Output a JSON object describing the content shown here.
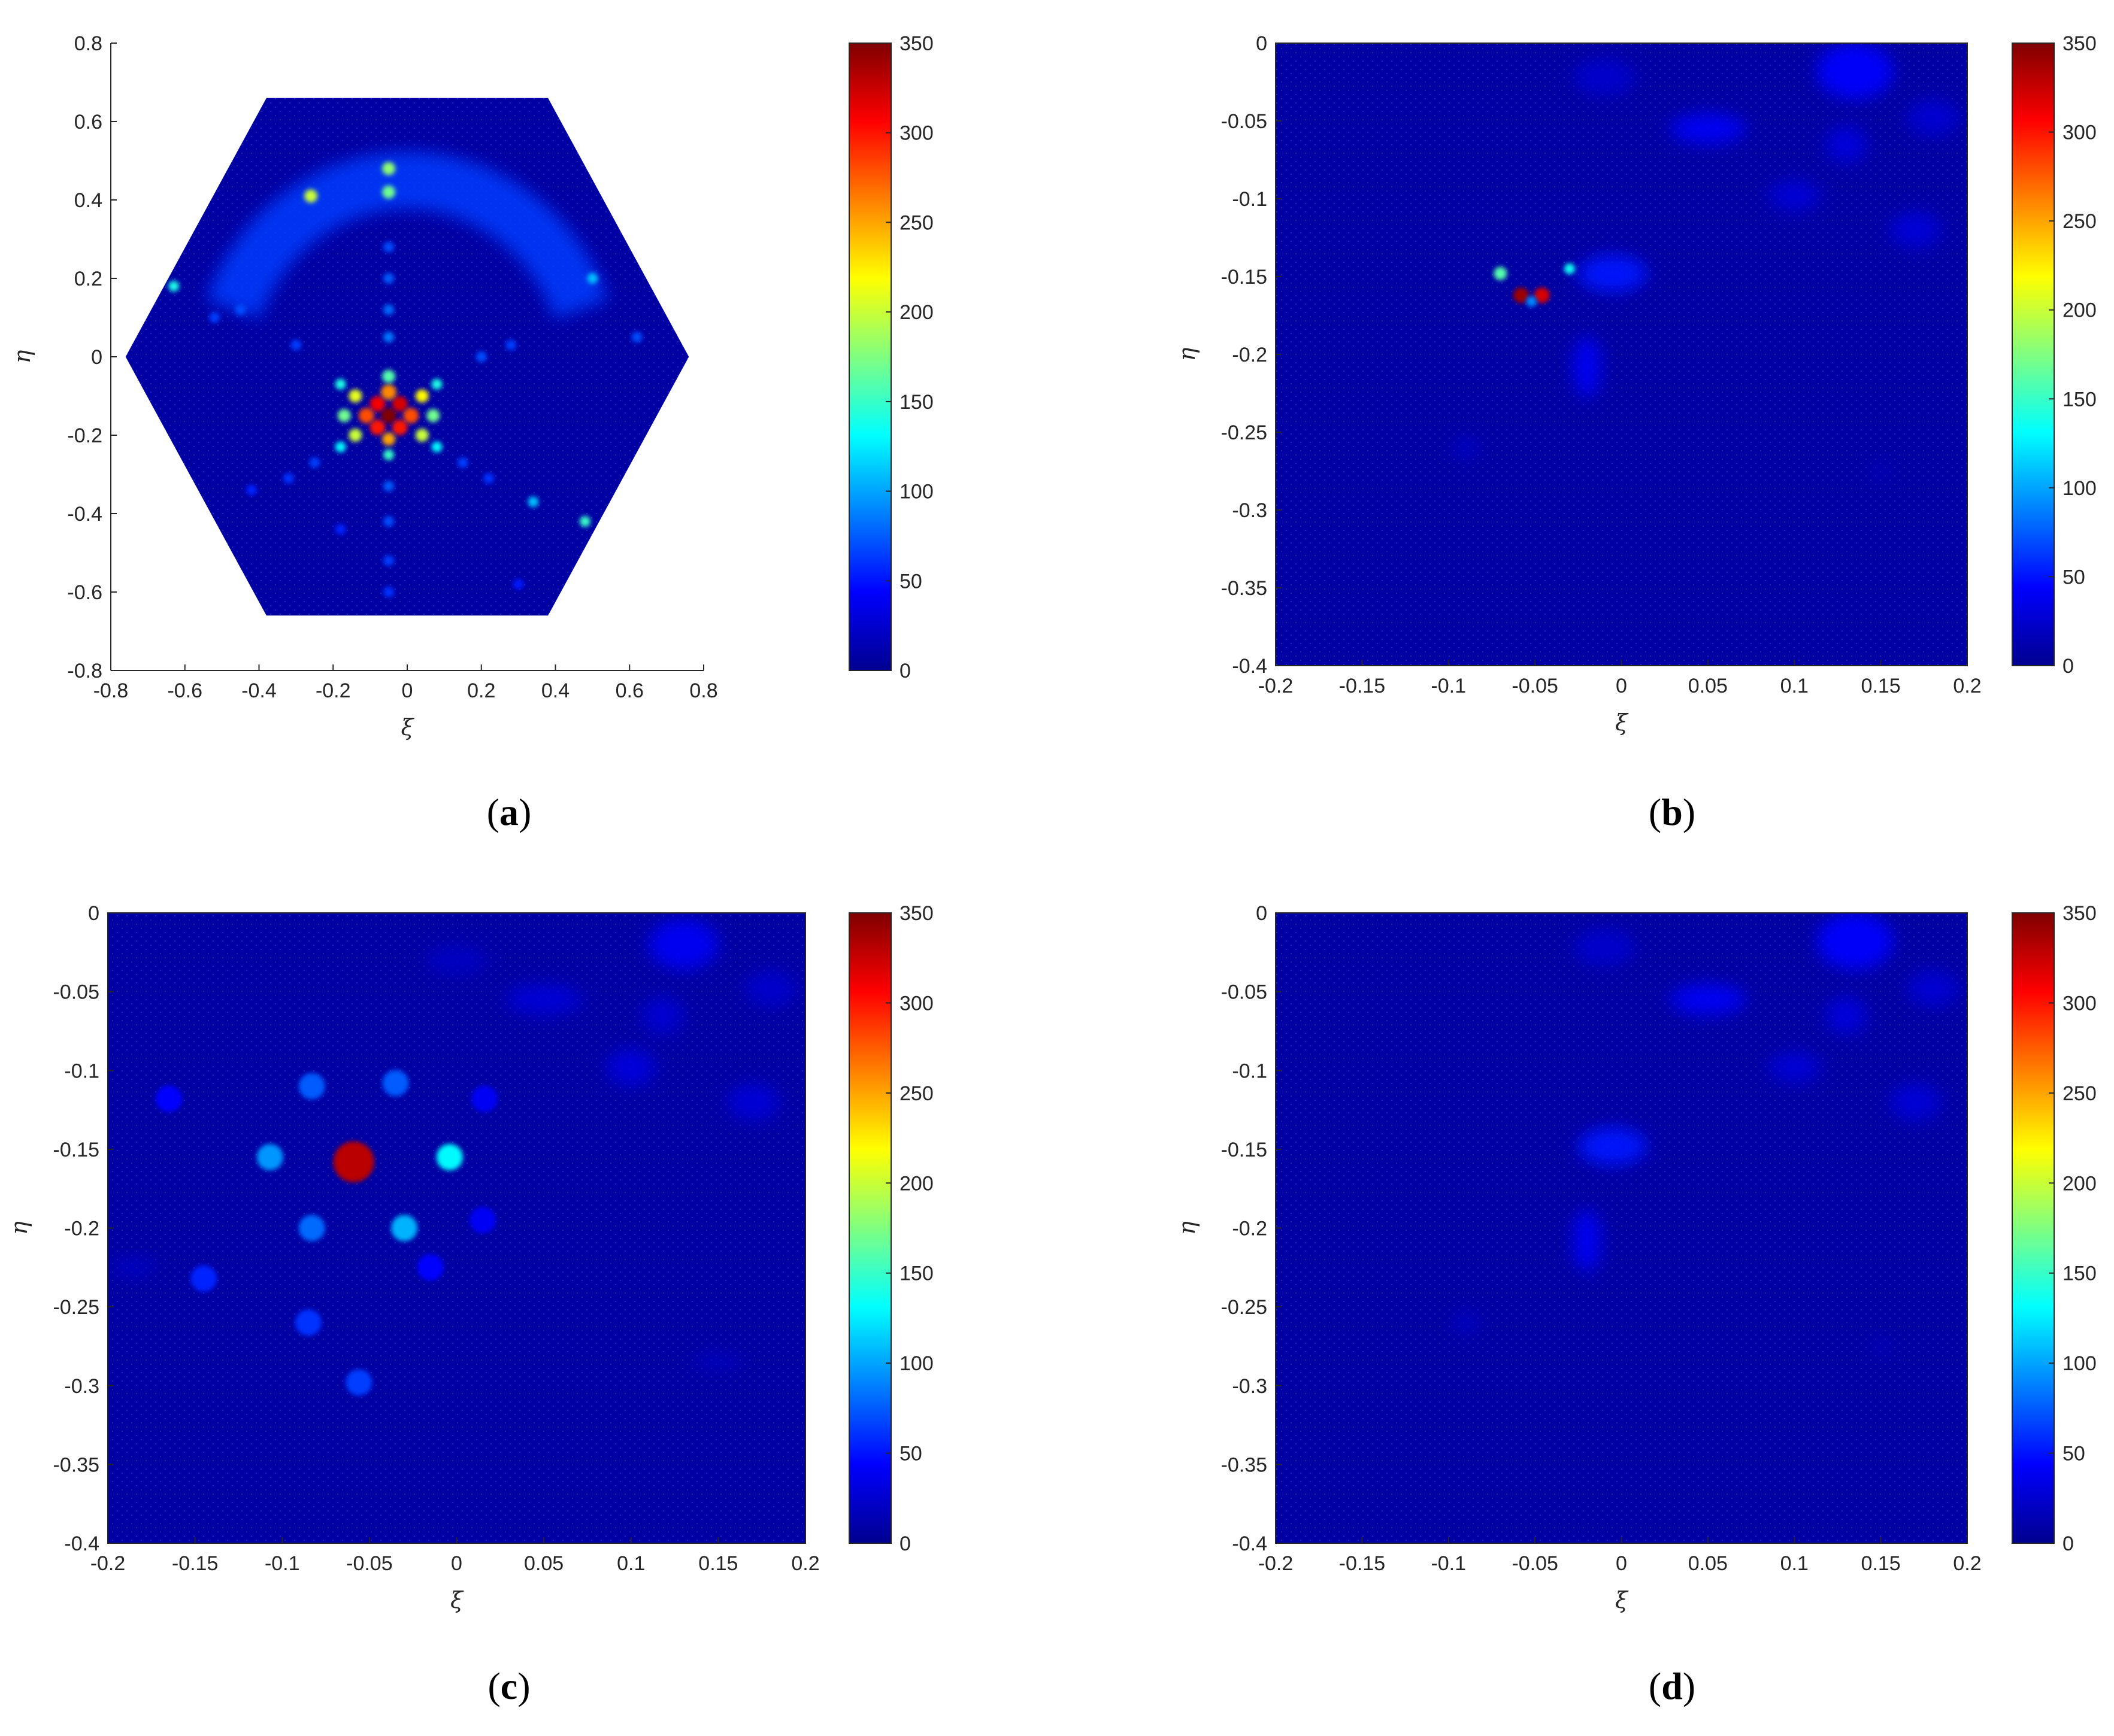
{
  "colormap": {
    "name": "jet",
    "stops": [
      "#00008f",
      "#0000ff",
      "#0080ff",
      "#00ffff",
      "#80ff80",
      "#ffff00",
      "#ff8000",
      "#ff0000",
      "#800000"
    ],
    "background_value": 8
  },
  "chart_data": [
    {
      "type": "heatmap",
      "panel": "a",
      "caption_open": "(",
      "caption_letter": "a",
      "caption_close": ")",
      "xlabel": "ξ",
      "ylabel": "η",
      "xlim": [
        -0.8,
        0.8
      ],
      "ylim": [
        -0.8,
        0.8
      ],
      "xticks": [
        -0.8,
        -0.6,
        -0.4,
        -0.2,
        0,
        0.2,
        0.4,
        0.6,
        0.8
      ],
      "yticks": [
        -0.8,
        -0.6,
        -0.4,
        -0.2,
        0,
        0.2,
        0.4,
        0.6,
        0.8
      ],
      "xtick_labels": [
        "-0.8",
        "-0.6",
        "-0.4",
        "-0.2",
        "0",
        "0.2",
        "0.4",
        "0.6",
        "0.8"
      ],
      "ytick_labels": [
        "-0.8",
        "-0.6",
        "-0.4",
        "-0.2",
        "0",
        "0.2",
        "0.4",
        "0.6",
        "0.8"
      ],
      "domain": "hexagon",
      "hexagon_vertices": [
        [
          -0.38,
          0.66
        ],
        [
          0.38,
          0.66
        ],
        [
          0.76,
          0
        ],
        [
          0.38,
          -0.66
        ],
        [
          -0.38,
          -0.66
        ],
        [
          -0.76,
          0
        ]
      ],
      "colorbar": {
        "min": 0,
        "max": 350,
        "ticks": [
          0,
          50,
          100,
          150,
          200,
          250,
          300,
          350
        ],
        "tick_labels": [
          "0",
          "50",
          "100",
          "150",
          "200",
          "250",
          "300",
          "350"
        ]
      },
      "peak": {
        "x": -0.05,
        "y": -0.15,
        "value": 350
      },
      "spots": [
        {
          "x": -0.05,
          "y": -0.15,
          "value": 350
        },
        {
          "x": -0.02,
          "y": -0.12,
          "value": 320
        },
        {
          "x": -0.08,
          "y": -0.12,
          "value": 310
        },
        {
          "x": -0.02,
          "y": -0.18,
          "value": 300
        },
        {
          "x": -0.08,
          "y": -0.18,
          "value": 300
        },
        {
          "x": 0.01,
          "y": -0.15,
          "value": 280
        },
        {
          "x": -0.11,
          "y": -0.15,
          "value": 280
        },
        {
          "x": -0.05,
          "y": -0.09,
          "value": 260
        },
        {
          "x": -0.05,
          "y": -0.21,
          "value": 250
        },
        {
          "x": 0.04,
          "y": -0.1,
          "value": 220
        },
        {
          "x": -0.14,
          "y": -0.1,
          "value": 210
        },
        {
          "x": 0.04,
          "y": -0.2,
          "value": 200
        },
        {
          "x": -0.14,
          "y": -0.2,
          "value": 200
        },
        {
          "x": -0.05,
          "y": -0.05,
          "value": 160
        },
        {
          "x": -0.05,
          "y": -0.25,
          "value": 150
        },
        {
          "x": 0.07,
          "y": -0.15,
          "value": 170
        },
        {
          "x": -0.17,
          "y": -0.15,
          "value": 170
        },
        {
          "x": 0.08,
          "y": -0.07,
          "value": 140
        },
        {
          "x": -0.18,
          "y": -0.07,
          "value": 140
        },
        {
          "x": 0.08,
          "y": -0.23,
          "value": 130
        },
        {
          "x": -0.18,
          "y": -0.23,
          "value": 130
        },
        {
          "x": -0.26,
          "y": 0.41,
          "value": 200
        },
        {
          "x": -0.05,
          "y": 0.48,
          "value": 180
        },
        {
          "x": -0.05,
          "y": 0.42,
          "value": 170
        },
        {
          "x": 0.48,
          "y": -0.42,
          "value": 150
        },
        {
          "x": -0.63,
          "y": 0.18,
          "value": 140
        },
        {
          "x": 0.5,
          "y": 0.2,
          "value": 110
        },
        {
          "x": 0.34,
          "y": -0.37,
          "value": 110
        },
        {
          "x": 0.2,
          "y": 0.0,
          "value": 70
        },
        {
          "x": 0.28,
          "y": 0.03,
          "value": 65
        },
        {
          "x": -0.3,
          "y": 0.03,
          "value": 65
        },
        {
          "x": -0.05,
          "y": 0.05,
          "value": 85
        },
        {
          "x": -0.05,
          "y": 0.12,
          "value": 80
        },
        {
          "x": -0.05,
          "y": 0.2,
          "value": 75
        },
        {
          "x": -0.05,
          "y": 0.28,
          "value": 70
        },
        {
          "x": -0.05,
          "y": -0.33,
          "value": 75
        },
        {
          "x": -0.05,
          "y": -0.42,
          "value": 70
        },
        {
          "x": -0.05,
          "y": -0.52,
          "value": 65
        },
        {
          "x": -0.05,
          "y": -0.6,
          "value": 60
        },
        {
          "x": 0.15,
          "y": -0.27,
          "value": 65
        },
        {
          "x": 0.22,
          "y": -0.31,
          "value": 60
        },
        {
          "x": -0.25,
          "y": -0.27,
          "value": 65
        },
        {
          "x": -0.32,
          "y": -0.31,
          "value": 60
        },
        {
          "x": -0.42,
          "y": -0.34,
          "value": 55
        },
        {
          "x": -0.45,
          "y": 0.12,
          "value": 70
        },
        {
          "x": -0.52,
          "y": 0.1,
          "value": 65
        },
        {
          "x": 0.62,
          "y": 0.05,
          "value": 70
        },
        {
          "x": -0.18,
          "y": -0.44,
          "value": 55
        },
        {
          "x": 0.3,
          "y": -0.58,
          "value": 50
        }
      ],
      "arcs": [
        {
          "cx": 0.0,
          "cy": -0.05,
          "r": 0.5,
          "from": 20,
          "to": 160,
          "value": 65
        }
      ]
    },
    {
      "type": "heatmap",
      "panel": "b",
      "caption_open": "(",
      "caption_letter": "b",
      "caption_close": ")",
      "xlabel": "ξ",
      "ylabel": "η",
      "xlim": [
        -0.2,
        0.2
      ],
      "ylim": [
        -0.4,
        0
      ],
      "xticks": [
        -0.2,
        -0.15,
        -0.1,
        -0.05,
        0,
        0.05,
        0.1,
        0.15,
        0.2
      ],
      "yticks": [
        -0.4,
        -0.35,
        -0.3,
        -0.25,
        -0.2,
        -0.15,
        -0.1,
        -0.05,
        0
      ],
      "xtick_labels": [
        "-0.2",
        "-0.15",
        "-0.1",
        "-0.05",
        "0",
        "0.05",
        "0.1",
        "0.15",
        "0.2"
      ],
      "ytick_labels": [
        "-0.4",
        "-0.35",
        "-0.3",
        "-0.25",
        "-0.2",
        "-0.15",
        "-0.1",
        "-0.05",
        "0"
      ],
      "domain": "rectangle",
      "colorbar": {
        "min": 0,
        "max": 350,
        "ticks": [
          0,
          50,
          100,
          150,
          200,
          250,
          300,
          350
        ],
        "tick_labels": [
          "0",
          "50",
          "100",
          "150",
          "200",
          "250",
          "300",
          "350"
        ]
      },
      "peak": {
        "x": -0.05,
        "y": -0.162,
        "value": 350
      },
      "spots": [
        {
          "x": -0.058,
          "y": -0.162,
          "value": 340
        },
        {
          "x": -0.046,
          "y": -0.162,
          "value": 320
        },
        {
          "x": -0.052,
          "y": -0.166,
          "value": 90
        },
        {
          "x": -0.07,
          "y": -0.148,
          "value": 160
        },
        {
          "x": -0.03,
          "y": -0.145,
          "value": 135
        }
      ],
      "blobs": [
        {
          "x": -0.005,
          "y": -0.148,
          "rx": 0.02,
          "ry": 0.012,
          "value": 50
        },
        {
          "x": 0.135,
          "y": -0.018,
          "rx": 0.022,
          "ry": 0.018,
          "value": 45
        },
        {
          "x": 0.05,
          "y": -0.055,
          "rx": 0.022,
          "ry": 0.01,
          "value": 40
        },
        {
          "x": 0.13,
          "y": -0.065,
          "rx": 0.012,
          "ry": 0.012,
          "value": 30
        },
        {
          "x": 0.1,
          "y": -0.098,
          "rx": 0.015,
          "ry": 0.01,
          "value": 28
        },
        {
          "x": 0.17,
          "y": -0.12,
          "rx": 0.015,
          "ry": 0.012,
          "value": 28
        },
        {
          "x": 0.18,
          "y": -0.048,
          "rx": 0.015,
          "ry": 0.012,
          "value": 26
        },
        {
          "x": -0.01,
          "y": -0.022,
          "rx": 0.018,
          "ry": 0.012,
          "value": 24
        },
        {
          "x": -0.02,
          "y": -0.208,
          "rx": 0.008,
          "ry": 0.02,
          "value": 40
        },
        {
          "x": -0.09,
          "y": -0.26,
          "rx": 0.008,
          "ry": 0.008,
          "value": 20
        },
        {
          "x": 0.15,
          "y": -0.275,
          "rx": 0.006,
          "ry": 0.006,
          "value": 18
        }
      ]
    },
    {
      "type": "heatmap",
      "panel": "c",
      "caption_open": "(",
      "caption_letter": "c",
      "caption_close": ")",
      "xlabel": "ξ",
      "ylabel": "η",
      "xlim": [
        -0.2,
        0.2
      ],
      "ylim": [
        -0.4,
        0
      ],
      "xticks": [
        -0.2,
        -0.15,
        -0.1,
        -0.05,
        0,
        0.05,
        0.1,
        0.15,
        0.2
      ],
      "yticks": [
        -0.4,
        -0.35,
        -0.3,
        -0.25,
        -0.2,
        -0.15,
        -0.1,
        -0.05,
        0
      ],
      "xtick_labels": [
        "-0.2",
        "-0.15",
        "-0.1",
        "-0.05",
        "0",
        "0.05",
        "0.1",
        "0.15",
        "0.2"
      ],
      "ytick_labels": [
        "-0.4",
        "-0.35",
        "-0.3",
        "-0.25",
        "-0.2",
        "-0.15",
        "-0.1",
        "-0.05",
        "0"
      ],
      "domain": "rectangle",
      "colorbar": {
        "min": 0,
        "max": 350,
        "ticks": [
          0,
          50,
          100,
          150,
          200,
          250,
          300,
          350
        ],
        "tick_labels": [
          "0",
          "50",
          "100",
          "150",
          "200",
          "250",
          "300",
          "350"
        ]
      },
      "peak": {
        "x": -0.059,
        "y": -0.158,
        "value": 330
      },
      "spots": [
        {
          "x": -0.059,
          "y": -0.158,
          "value": 330
        },
        {
          "x": -0.004,
          "y": -0.155,
          "value": 130
        },
        {
          "x": -0.107,
          "y": -0.155,
          "value": 95
        },
        {
          "x": -0.03,
          "y": -0.2,
          "value": 105
        },
        {
          "x": -0.083,
          "y": -0.2,
          "value": 80
        },
        {
          "x": -0.083,
          "y": -0.11,
          "value": 75
        },
        {
          "x": -0.035,
          "y": -0.108,
          "value": 75
        },
        {
          "x": -0.056,
          "y": -0.298,
          "value": 65
        },
        {
          "x": -0.145,
          "y": -0.232,
          "value": 55
        },
        {
          "x": -0.085,
          "y": -0.26,
          "value": 60
        },
        {
          "x": -0.165,
          "y": -0.118,
          "value": 45
        },
        {
          "x": 0.016,
          "y": -0.118,
          "value": 40
        },
        {
          "x": 0.015,
          "y": -0.195,
          "value": 40
        },
        {
          "x": -0.015,
          "y": -0.225,
          "value": 45
        }
      ],
      "blobs": [
        {
          "x": 0.13,
          "y": -0.02,
          "rx": 0.02,
          "ry": 0.016,
          "value": 40
        },
        {
          "x": 0.1,
          "y": -0.098,
          "rx": 0.014,
          "ry": 0.012,
          "value": 30
        },
        {
          "x": 0.17,
          "y": -0.12,
          "rx": 0.015,
          "ry": 0.012,
          "value": 28
        },
        {
          "x": 0.05,
          "y": -0.055,
          "rx": 0.022,
          "ry": 0.01,
          "value": 28
        },
        {
          "x": 0.118,
          "y": -0.065,
          "rx": 0.012,
          "ry": 0.012,
          "value": 26
        },
        {
          "x": 0.18,
          "y": -0.048,
          "rx": 0.015,
          "ry": 0.012,
          "value": 24
        },
        {
          "x": 0.0,
          "y": -0.03,
          "rx": 0.018,
          "ry": 0.01,
          "value": 20
        },
        {
          "x": -0.185,
          "y": -0.225,
          "rx": 0.012,
          "ry": 0.006,
          "value": 22
        },
        {
          "x": 0.15,
          "y": -0.285,
          "rx": 0.014,
          "ry": 0.006,
          "value": 18
        }
      ]
    },
    {
      "type": "heatmap",
      "panel": "d",
      "caption_open": "(",
      "caption_letter": "d",
      "caption_close": ")",
      "xlabel": "ξ",
      "ylabel": "η",
      "xlim": [
        -0.2,
        0.2
      ],
      "ylim": [
        -0.4,
        0
      ],
      "xticks": [
        -0.2,
        -0.15,
        -0.1,
        -0.05,
        0,
        0.05,
        0.1,
        0.15,
        0.2
      ],
      "yticks": [
        -0.4,
        -0.35,
        -0.3,
        -0.25,
        -0.2,
        -0.15,
        -0.1,
        -0.05,
        0
      ],
      "xtick_labels": [
        "-0.2",
        "-0.15",
        "-0.1",
        "-0.05",
        "0",
        "0.05",
        "0.1",
        "0.15",
        "0.2"
      ],
      "ytick_labels": [
        "-0.4",
        "-0.35",
        "-0.3",
        "-0.25",
        "-0.2",
        "-0.15",
        "-0.1",
        "-0.05",
        "0"
      ],
      "domain": "rectangle",
      "colorbar": {
        "min": 0,
        "max": 350,
        "ticks": [
          0,
          50,
          100,
          150,
          200,
          250,
          300,
          350
        ],
        "tick_labels": [
          "0",
          "50",
          "100",
          "150",
          "200",
          "250",
          "300",
          "350"
        ]
      },
      "spots": [],
      "blobs": [
        {
          "x": -0.005,
          "y": -0.148,
          "rx": 0.02,
          "ry": 0.012,
          "value": 50
        },
        {
          "x": 0.135,
          "y": -0.018,
          "rx": 0.022,
          "ry": 0.018,
          "value": 45
        },
        {
          "x": 0.05,
          "y": -0.055,
          "rx": 0.022,
          "ry": 0.01,
          "value": 40
        },
        {
          "x": 0.13,
          "y": -0.065,
          "rx": 0.012,
          "ry": 0.012,
          "value": 30
        },
        {
          "x": 0.1,
          "y": -0.098,
          "rx": 0.015,
          "ry": 0.01,
          "value": 28
        },
        {
          "x": 0.17,
          "y": -0.12,
          "rx": 0.015,
          "ry": 0.012,
          "value": 28
        },
        {
          "x": 0.18,
          "y": -0.048,
          "rx": 0.015,
          "ry": 0.012,
          "value": 26
        },
        {
          "x": -0.01,
          "y": -0.022,
          "rx": 0.018,
          "ry": 0.012,
          "value": 24
        },
        {
          "x": -0.02,
          "y": -0.208,
          "rx": 0.008,
          "ry": 0.02,
          "value": 40
        },
        {
          "x": -0.09,
          "y": -0.26,
          "rx": 0.008,
          "ry": 0.008,
          "value": 20
        },
        {
          "x": 0.15,
          "y": -0.275,
          "rx": 0.006,
          "ry": 0.006,
          "value": 18
        }
      ]
    }
  ]
}
